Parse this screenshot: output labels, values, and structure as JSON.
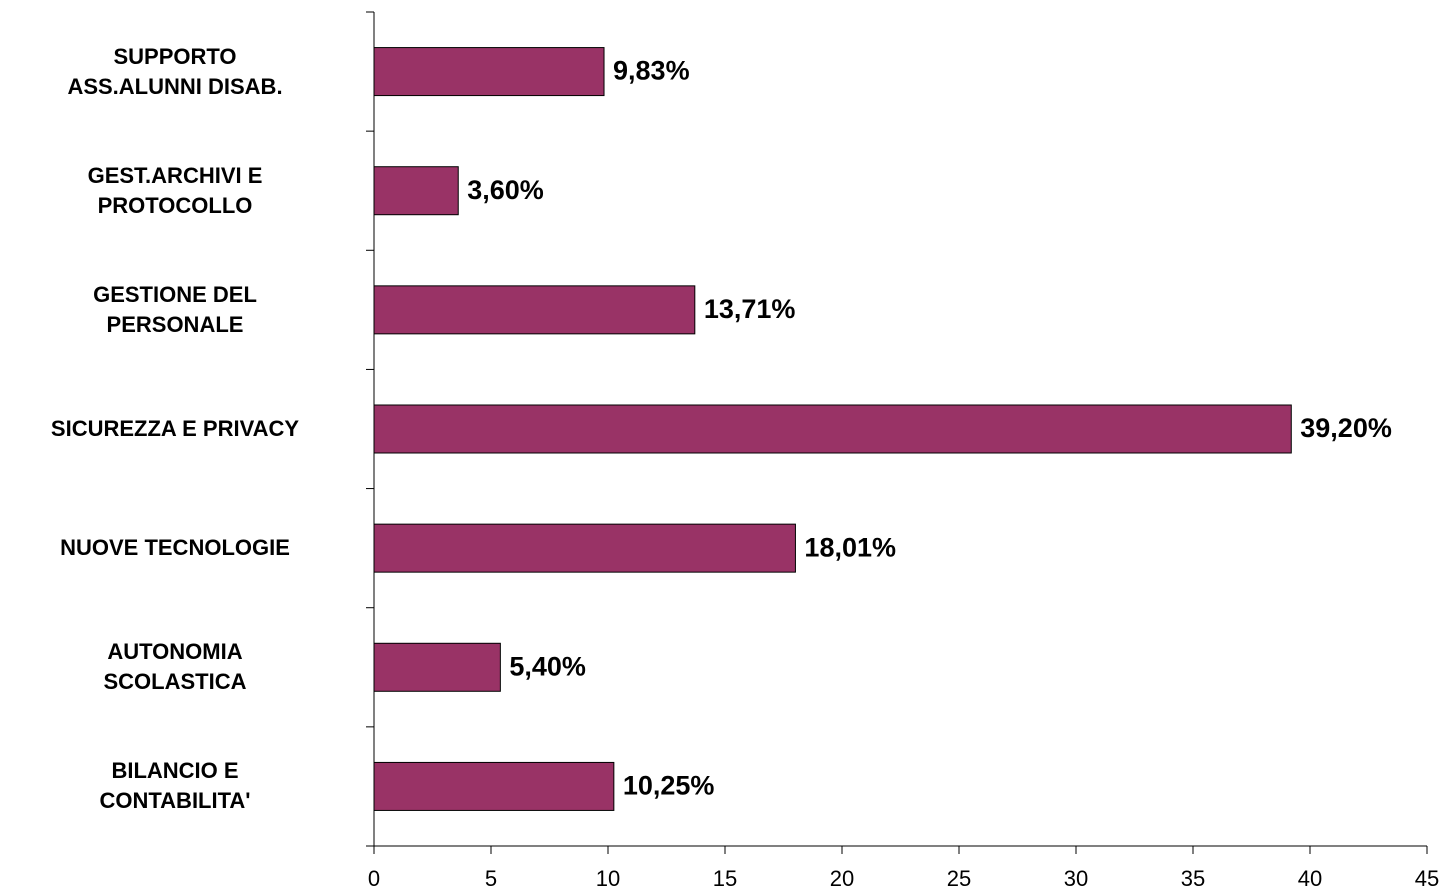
{
  "chart_data": {
    "type": "barh",
    "categories": [
      "SUPPORTO\nASS.ALUNNI DISAB.",
      "GEST.ARCHIVI E\nPROTOCOLLO",
      "GESTIONE DEL\nPERSONALE",
      "SICUREZZA E PRIVACY",
      "NUOVE TECNOLOGIE",
      "AUTONOMIA\nSCOLASTICA",
      "BILANCIO E\nCONTABILITA'"
    ],
    "values": [
      9.83,
      3.6,
      13.71,
      39.2,
      18.01,
      5.4,
      10.25
    ],
    "value_labels": [
      "9,83%",
      "3,60%",
      "13,71%",
      "39,20%",
      "18,01%",
      "5,40%",
      "10,25%"
    ],
    "color": "#993366",
    "xlim": [
      0,
      45
    ],
    "xticks": [
      0,
      5,
      10,
      15,
      20,
      25,
      30,
      35,
      40,
      45
    ],
    "grid": false
  }
}
